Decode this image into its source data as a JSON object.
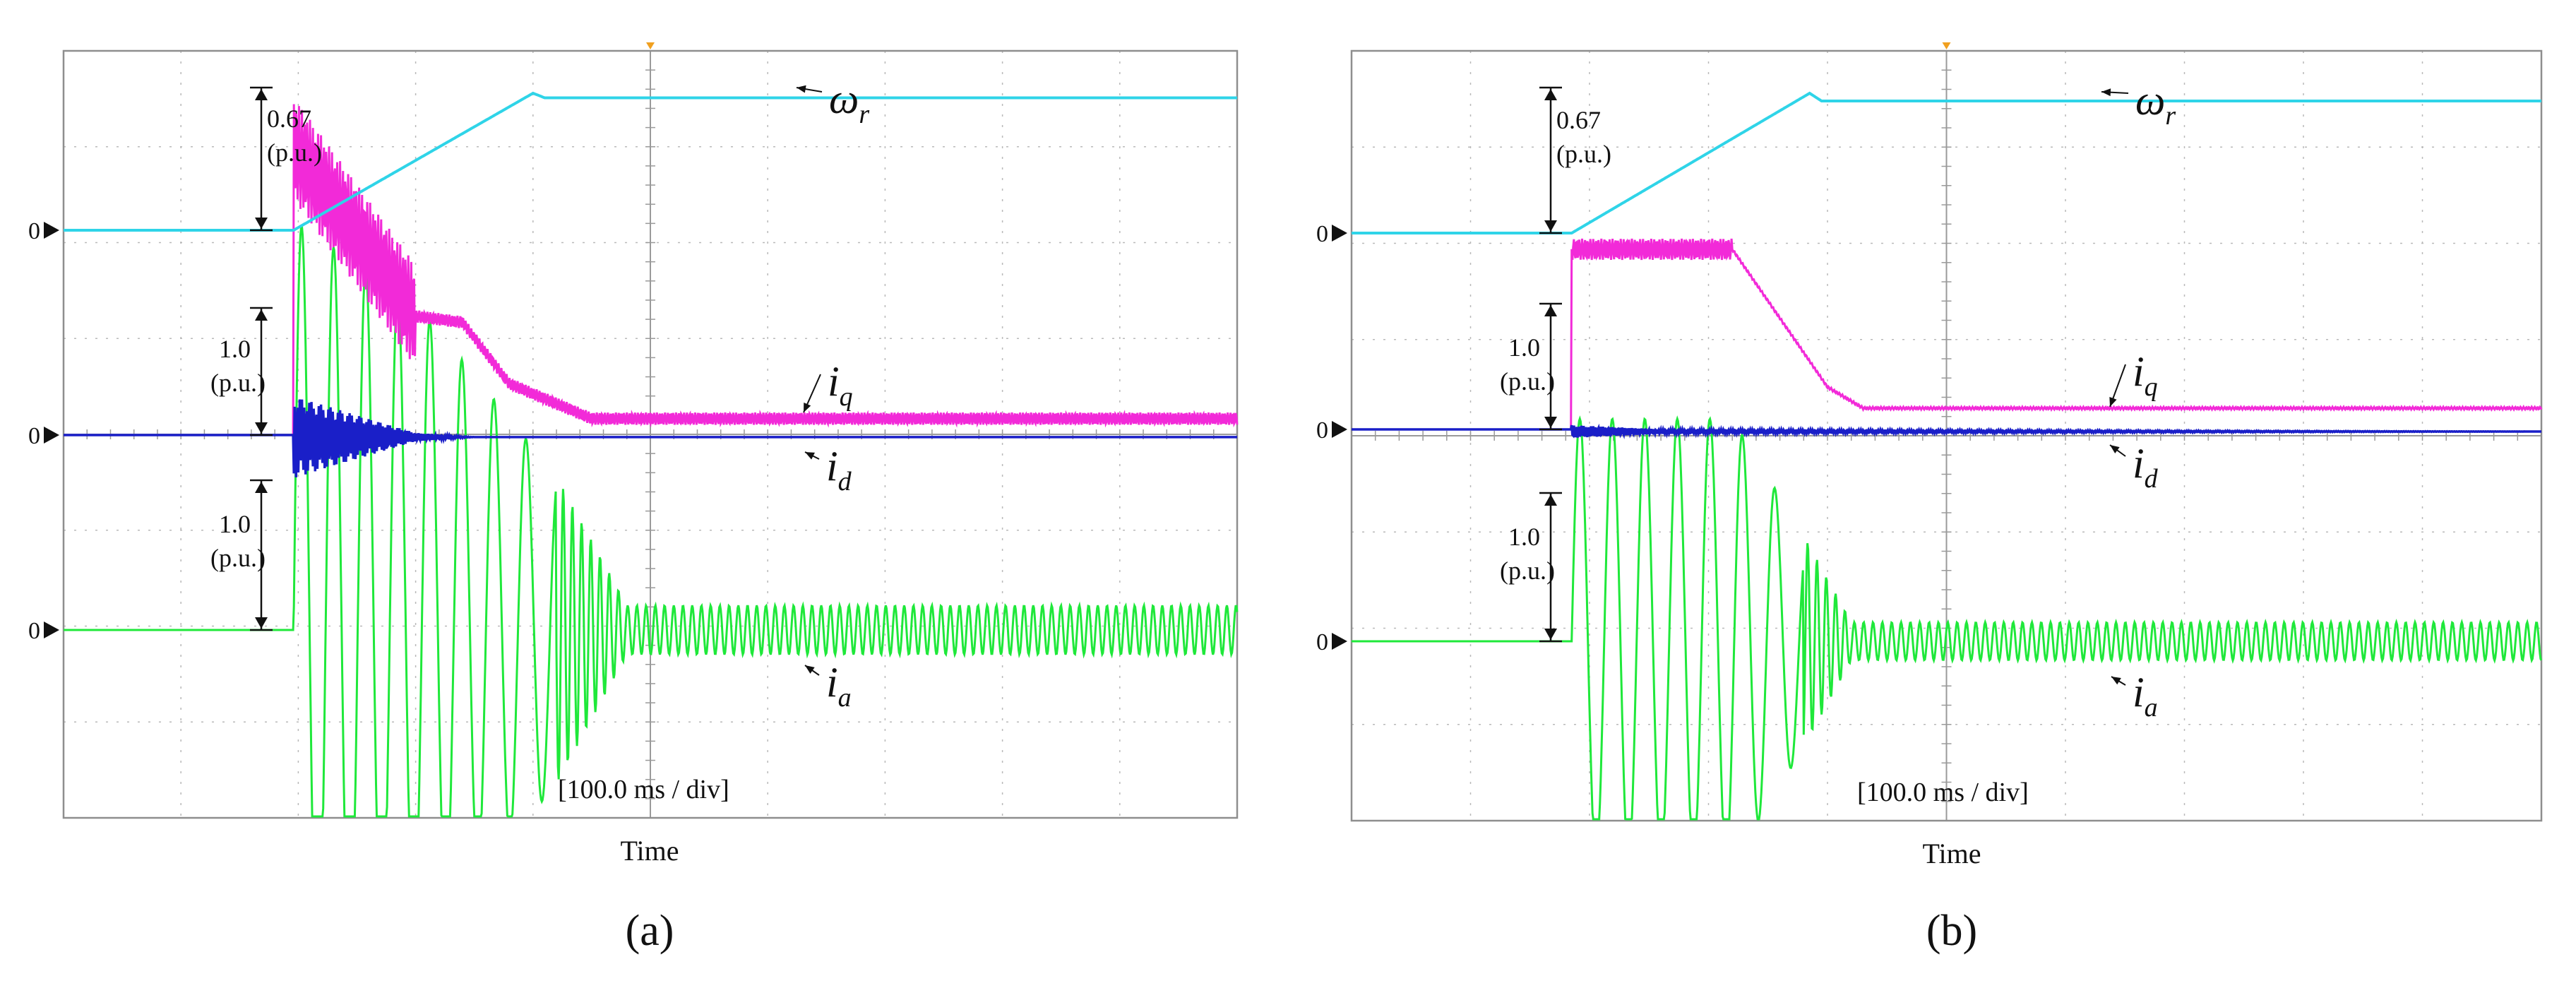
{
  "colors": {
    "omega": "#2fd4e8",
    "iq": "#f22ad8",
    "id": "#1a1fc8",
    "ia": "#1fe83a",
    "grid": "#b9b9b9",
    "frame": "#8e8e8e"
  },
  "chart_data": [
    {
      "type": "line",
      "panel": "(a)",
      "timebase": "[100.0 ms  / div]",
      "xlabel": "Time",
      "grid": true,
      "zero_markers": [
        "0",
        "0",
        "0"
      ],
      "scales": [
        {
          "value": "0.67",
          "unit": "(p.u.)"
        },
        {
          "value": "1.0",
          "unit": "(p.u.)"
        },
        {
          "value": "1.0",
          "unit": "(p.u.)"
        }
      ],
      "series": [
        {
          "name": "ω",
          "sub": "r",
          "quantity": "rotor speed (p.u.)",
          "t_ms": [
            0,
            196,
            400,
            410,
            1000
          ],
          "values": [
            0,
            0,
            0.9,
            0.87,
            0.87
          ]
        },
        {
          "name": "i",
          "sub": "q",
          "quantity": "q-axis current (p.u.)",
          "t_ms": [
            0,
            196,
            300,
            340,
            380,
            450,
            1000
          ],
          "values": [
            0,
            1.4,
            0.58,
            0.55,
            0.25,
            0.08,
            0.08
          ]
        },
        {
          "name": "i",
          "sub": "d",
          "quantity": "d-axis current (p.u.)",
          "t_ms": [
            0,
            196,
            300,
            350,
            1000
          ],
          "values": [
            0,
            0.2,
            0.02,
            0,
            0
          ]
        },
        {
          "name": "i",
          "sub": "a",
          "quantity": "phase-a current amplitude (p.u.)",
          "t_ms": [
            0,
            196,
            300,
            420,
            480,
            1000
          ],
          "values": [
            0,
            2.0,
            1.6,
            0.75,
            0.12,
            0.12
          ]
        }
      ]
    },
    {
      "type": "line",
      "panel": "(b)",
      "timebase": "[100.0 ms  / div]",
      "xlabel": "Time",
      "grid": true,
      "zero_markers": [
        "0",
        "0",
        "0"
      ],
      "scales": [
        {
          "value": "0.67",
          "unit": "(p.u.)"
        },
        {
          "value": "1.0",
          "unit": "(p.u.)"
        },
        {
          "value": "1.0",
          "unit": "(p.u.)"
        }
      ],
      "series": [
        {
          "name": "ω",
          "sub": "r",
          "quantity": "rotor speed (p.u.)",
          "t_ms": [
            0,
            185,
            385,
            395,
            1000
          ],
          "values": [
            0,
            0,
            0.9,
            0.85,
            0.85
          ]
        },
        {
          "name": "i",
          "sub": "q",
          "quantity": "q-axis current (p.u.)",
          "t_ms": [
            0,
            185,
            320,
            400,
            430,
            1000
          ],
          "values": [
            0,
            0.85,
            0.85,
            0.2,
            0.1,
            0.1
          ]
        },
        {
          "name": "i",
          "sub": "d",
          "quantity": "d-axis current (p.u.)",
          "t_ms": [
            0,
            185,
            260,
            1000
          ],
          "values": [
            0,
            0.03,
            0.01,
            0
          ]
        },
        {
          "name": "i",
          "sub": "a",
          "quantity": "phase-a current amplitude (p.u.)",
          "t_ms": [
            0,
            185,
            320,
            380,
            420,
            1000
          ],
          "values": [
            0,
            1.05,
            1.05,
            0.5,
            0.09,
            0.09
          ]
        }
      ]
    }
  ],
  "panels": [
    {
      "sublabel": "(a)"
    },
    {
      "sublabel": "(b)"
    }
  ]
}
